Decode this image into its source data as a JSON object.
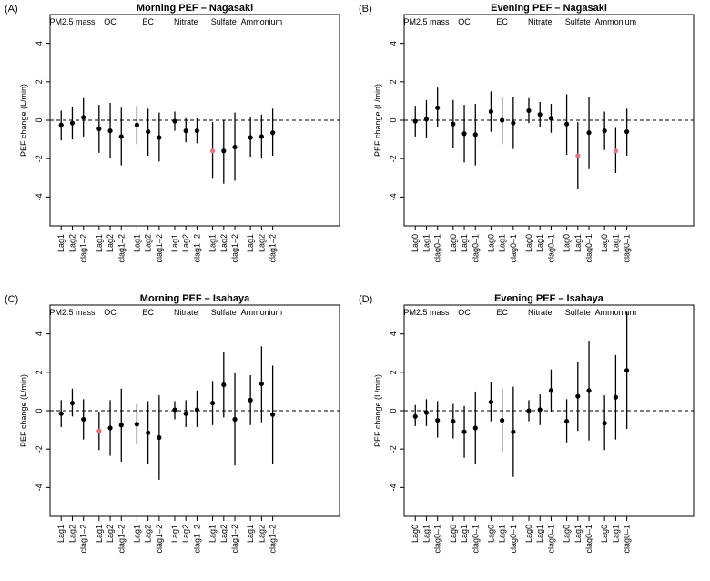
{
  "chart_data": [
    {
      "type": "errorbar",
      "panel": "(A)",
      "title": "Morning PEF – Nagasaki",
      "ylabel": "PEF change (L/min)",
      "ylim": [
        -5.5,
        5.5
      ],
      "yticks": [
        -4,
        -2,
        0,
        2,
        4
      ],
      "reference_line": 0,
      "groups": [
        {
          "name": "PM2.5 mass",
          "lags": [
            "Lag1",
            "Lag2",
            "clag1–2"
          ],
          "est": [
            -0.25,
            -0.15,
            0.15
          ],
          "lo": [
            -1.05,
            -1.0,
            -0.85
          ],
          "hi": [
            0.5,
            0.7,
            1.15
          ],
          "highlight": [
            false,
            false,
            false
          ]
        },
        {
          "name": "OC",
          "lags": [
            "Lag1",
            "Lag2",
            "clag1–2"
          ],
          "est": [
            -0.45,
            -0.55,
            -0.85
          ],
          "lo": [
            -1.7,
            -1.95,
            -2.35
          ],
          "hi": [
            0.8,
            0.9,
            0.65
          ],
          "highlight": [
            false,
            false,
            false
          ]
        },
        {
          "name": "EC",
          "lags": [
            "Lag1",
            "Lag2",
            "clag1–2"
          ],
          "est": [
            -0.25,
            -0.6,
            -0.9
          ],
          "lo": [
            -1.25,
            -1.85,
            -2.15
          ],
          "hi": [
            0.75,
            0.6,
            0.4
          ],
          "highlight": [
            false,
            false,
            false
          ]
        },
        {
          "name": "Nitrate",
          "lags": [
            "Lag1",
            "Lag2",
            "clag1–2"
          ],
          "est": [
            -0.05,
            -0.55,
            -0.55
          ],
          "lo": [
            -0.55,
            -1.15,
            -1.2
          ],
          "hi": [
            0.45,
            0.1,
            0.1
          ],
          "highlight": [
            false,
            false,
            false
          ]
        },
        {
          "name": "Sulfate",
          "lags": [
            "Lag1",
            "Lag2",
            "clag1–2"
          ],
          "est": [
            -1.6,
            -1.6,
            -1.4
          ],
          "lo": [
            -3.05,
            -3.3,
            -3.15
          ],
          "hi": [
            -0.1,
            0.0,
            0.4
          ],
          "highlight": [
            true,
            false,
            false
          ]
        },
        {
          "name": "Ammonium",
          "lags": [
            "Lag1",
            "Lag2",
            "clag1–2"
          ],
          "est": [
            -0.9,
            -0.85,
            -0.65
          ],
          "lo": [
            -1.9,
            -2.0,
            -1.85
          ],
          "hi": [
            0.15,
            0.3,
            0.6
          ],
          "highlight": [
            false,
            false,
            false
          ]
        }
      ]
    },
    {
      "type": "errorbar",
      "panel": "(B)",
      "title": "Evening PEF – Nagasaki",
      "ylabel": "PEF change (L/min)",
      "ylim": [
        -5.5,
        5.5
      ],
      "yticks": [
        -4,
        -2,
        0,
        2,
        4
      ],
      "reference_line": 0,
      "groups": [
        {
          "name": "PM2.5 mass",
          "lags": [
            "Lag0",
            "Lag1",
            "clag0–1"
          ],
          "est": [
            -0.05,
            0.05,
            0.65
          ],
          "lo": [
            -0.85,
            -0.95,
            -0.35
          ],
          "hi": [
            0.75,
            1.05,
            1.7
          ],
          "highlight": [
            false,
            false,
            false
          ]
        },
        {
          "name": "OC",
          "lags": [
            "Lag0",
            "Lag1",
            "clag0–1"
          ],
          "est": [
            -0.2,
            -0.7,
            -0.75
          ],
          "lo": [
            -1.45,
            -2.2,
            -2.35
          ],
          "hi": [
            1.05,
            0.8,
            0.85
          ],
          "highlight": [
            false,
            false,
            false
          ]
        },
        {
          "name": "EC",
          "lags": [
            "Lag0",
            "Lag1",
            "clag0–1"
          ],
          "est": [
            0.45,
            0.0,
            -0.15
          ],
          "lo": [
            -0.6,
            -1.25,
            -1.5
          ],
          "hi": [
            1.5,
            1.2,
            1.2
          ],
          "highlight": [
            false,
            false,
            false
          ]
        },
        {
          "name": "Nitrate",
          "lags": [
            "Lag0",
            "Lag1",
            "clag0–1"
          ],
          "est": [
            0.5,
            0.3,
            0.1
          ],
          "lo": [
            -0.15,
            -0.35,
            -0.65
          ],
          "hi": [
            1.15,
            0.95,
            0.85
          ],
          "highlight": [
            false,
            false,
            false
          ]
        },
        {
          "name": "Sulfate",
          "lags": [
            "Lag0",
            "Lag1",
            "clag0–1"
          ],
          "est": [
            -0.2,
            -1.85,
            -0.65
          ],
          "lo": [
            -1.8,
            -3.6,
            -2.55
          ],
          "hi": [
            1.35,
            -0.1,
            1.2
          ],
          "highlight": [
            false,
            true,
            false
          ]
        },
        {
          "name": "Ammonium",
          "lags": [
            "Lag0",
            "Lag1",
            "clag0–1"
          ],
          "est": [
            -0.55,
            -1.6,
            -0.6
          ],
          "lo": [
            -1.55,
            -2.75,
            -1.85
          ],
          "hi": [
            0.45,
            -0.4,
            0.6
          ],
          "highlight": [
            false,
            true,
            false
          ]
        }
      ]
    },
    {
      "type": "errorbar",
      "panel": "(C)",
      "title": "Morning PEF – Isahaya",
      "ylabel": "PEF change (L/min)",
      "ylim": [
        -5.5,
        5.5
      ],
      "yticks": [
        -4,
        -2,
        0,
        2,
        4
      ],
      "reference_line": 0,
      "groups": [
        {
          "name": "PM2.5 mass",
          "lags": [
            "Lag1",
            "Lag2",
            "clag1–2"
          ],
          "est": [
            -0.15,
            0.4,
            -0.45
          ],
          "lo": [
            -0.85,
            -0.3,
            -1.5
          ],
          "hi": [
            0.55,
            1.15,
            0.6
          ],
          "highlight": [
            false,
            false,
            false
          ]
        },
        {
          "name": "OC",
          "lags": [
            "Lag1",
            "Lag2",
            "clag1–2"
          ],
          "est": [
            -1.05,
            -0.9,
            -0.75
          ],
          "lo": [
            -2.05,
            -2.35,
            -2.65
          ],
          "hi": [
            -0.05,
            0.55,
            1.15
          ],
          "highlight": [
            true,
            false,
            false
          ]
        },
        {
          "name": "EC",
          "lags": [
            "Lag1",
            "Lag2",
            "clag1–2"
          ],
          "est": [
            -0.7,
            -1.15,
            -1.4
          ],
          "lo": [
            -1.75,
            -2.8,
            -3.6
          ],
          "hi": [
            0.35,
            0.5,
            0.8
          ],
          "highlight": [
            false,
            false,
            false
          ]
        },
        {
          "name": "Nitrate",
          "lags": [
            "Lag1",
            "Lag2",
            "clag1–2"
          ],
          "est": [
            0.05,
            -0.15,
            0.05
          ],
          "lo": [
            -0.45,
            -0.85,
            -0.85
          ],
          "hi": [
            0.5,
            0.55,
            1.05
          ],
          "highlight": [
            false,
            false,
            false
          ]
        },
        {
          "name": "Sulfate",
          "lags": [
            "Lag1",
            "Lag2",
            "clag1–2"
          ],
          "est": [
            0.4,
            1.35,
            -0.45
          ],
          "lo": [
            -0.75,
            -0.35,
            -2.85
          ],
          "hi": [
            1.55,
            3.05,
            1.95
          ],
          "highlight": [
            false,
            false,
            false
          ]
        },
        {
          "name": "Ammonium",
          "lags": [
            "Lag1",
            "Lag2",
            "clag1–2"
          ],
          "est": [
            0.55,
            1.4,
            -0.2
          ],
          "lo": [
            -0.75,
            -0.6,
            -2.75
          ],
          "hi": [
            1.85,
            3.35,
            2.35
          ],
          "highlight": [
            false,
            false,
            false
          ]
        }
      ]
    },
    {
      "type": "errorbar",
      "panel": "(D)",
      "title": "Evening PEF – Isahaya",
      "ylabel": "PEF change (L/min)",
      "ylim": [
        -5.5,
        5.5
      ],
      "yticks": [
        -4,
        -2,
        0,
        2,
        4
      ],
      "reference_line": 0,
      "groups": [
        {
          "name": "PM2.5 mass",
          "lags": [
            "Lag0",
            "Lag1",
            "clag0–1"
          ],
          "est": [
            -0.3,
            -0.1,
            -0.5
          ],
          "lo": [
            -0.8,
            -0.8,
            -1.4
          ],
          "hi": [
            0.3,
            0.6,
            0.5
          ],
          "highlight": [
            false,
            false,
            false
          ]
        },
        {
          "name": "OC",
          "lags": [
            "Lag0",
            "Lag1",
            "clag0–1"
          ],
          "est": [
            -0.55,
            -1.1,
            -0.9
          ],
          "lo": [
            -1.45,
            -2.45,
            -2.8
          ],
          "hi": [
            0.35,
            0.25,
            1.0
          ],
          "highlight": [
            false,
            false,
            false
          ]
        },
        {
          "name": "EC",
          "lags": [
            "Lag0",
            "Lag1",
            "clag0–1"
          ],
          "est": [
            0.45,
            -0.5,
            -1.1
          ],
          "lo": [
            -0.55,
            -2.15,
            -3.45
          ],
          "hi": [
            1.5,
            1.15,
            1.25
          ],
          "highlight": [
            false,
            false,
            false
          ]
        },
        {
          "name": "Nitrate",
          "lags": [
            "Lag0",
            "Lag1",
            "clag0–1"
          ],
          "est": [
            0.0,
            0.05,
            1.05
          ],
          "lo": [
            -0.55,
            -0.75,
            -0.05
          ],
          "hi": [
            0.55,
            0.85,
            2.15
          ],
          "highlight": [
            false,
            false,
            false
          ]
        },
        {
          "name": "Sulfate",
          "lags": [
            "Lag0",
            "Lag1",
            "clag0–1"
          ],
          "est": [
            -0.55,
            0.75,
            1.05
          ],
          "lo": [
            -1.65,
            -1.05,
            -1.55
          ],
          "hi": [
            0.6,
            2.55,
            3.6
          ],
          "highlight": [
            false,
            false,
            false
          ]
        },
        {
          "name": "Ammonium",
          "lags": [
            "Lag0",
            "Lag1",
            "clag0–1"
          ],
          "est": [
            -0.65,
            0.7,
            2.1
          ],
          "lo": [
            -2.05,
            -1.5,
            -0.95
          ],
          "hi": [
            0.8,
            2.9,
            5.15
          ],
          "highlight": [
            false,
            false,
            false
          ]
        }
      ]
    }
  ],
  "colors": {
    "point": "#000000",
    "highlight": "#e8727c",
    "line": "#000000"
  }
}
